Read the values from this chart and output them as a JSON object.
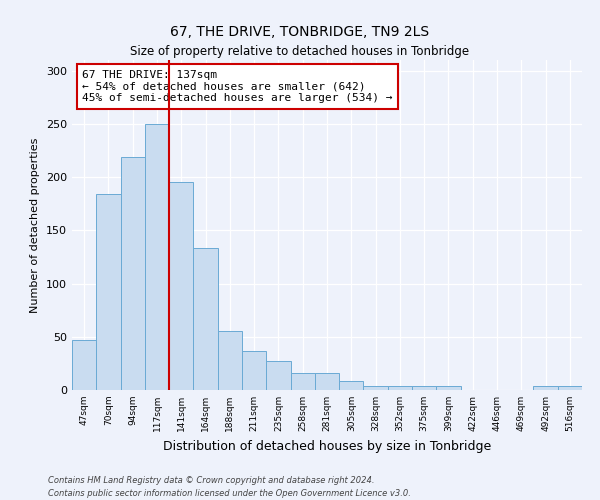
{
  "title": "67, THE DRIVE, TONBRIDGE, TN9 2LS",
  "subtitle": "Size of property relative to detached houses in Tonbridge",
  "xlabel": "Distribution of detached houses by size in Tonbridge",
  "ylabel": "Number of detached properties",
  "bar_labels": [
    "47sqm",
    "70sqm",
    "94sqm",
    "117sqm",
    "141sqm",
    "164sqm",
    "188sqm",
    "211sqm",
    "235sqm",
    "258sqm",
    "281sqm",
    "305sqm",
    "328sqm",
    "352sqm",
    "375sqm",
    "399sqm",
    "422sqm",
    "446sqm",
    "469sqm",
    "492sqm",
    "516sqm"
  ],
  "bar_values": [
    47,
    184,
    219,
    250,
    195,
    133,
    55,
    37,
    27,
    16,
    16,
    8,
    4,
    4,
    4,
    4,
    0,
    0,
    0,
    4,
    4
  ],
  "bar_color": "#c9dcf0",
  "bar_edge_color": "#6aaad4",
  "vline_color": "#cc0000",
  "vline_x": 3.5,
  "annotation_text": "67 THE DRIVE: 137sqm\n← 54% of detached houses are smaller (642)\n45% of semi-detached houses are larger (534) →",
  "annotation_box_color": "#ffffff",
  "annotation_box_edge_color": "#cc0000",
  "ylim": [
    0,
    310
  ],
  "yticks": [
    0,
    50,
    100,
    150,
    200,
    250,
    300
  ],
  "footer_line1": "Contains HM Land Registry data © Crown copyright and database right 2024.",
  "footer_line2": "Contains public sector information licensed under the Open Government Licence v3.0.",
  "bg_color": "#eef2fb"
}
